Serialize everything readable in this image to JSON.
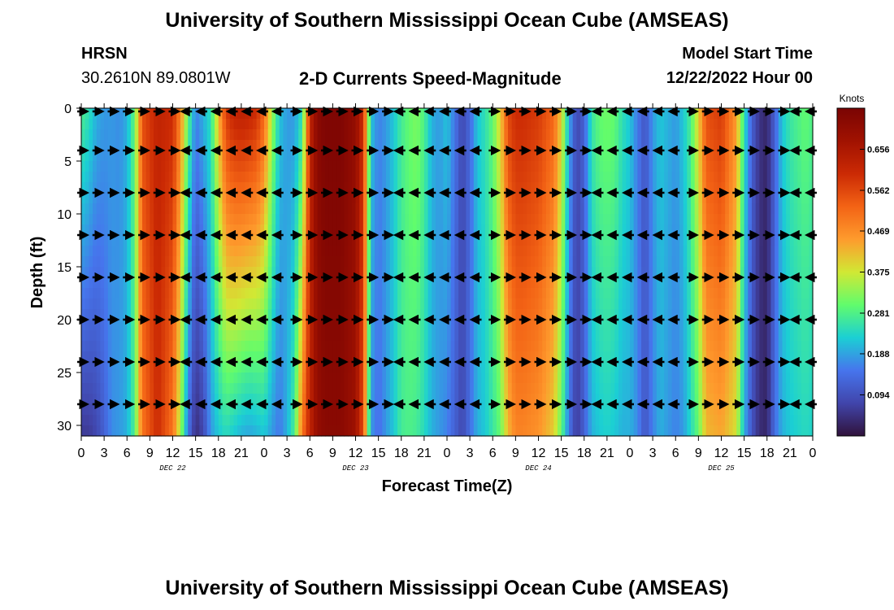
{
  "header": {
    "title": "University of Southern Mississippi Ocean Cube (AMSEAS)",
    "station": "HRSN",
    "coordinates": "30.2610N  89.0801W",
    "subtitle": "2-D Currents Speed-Magnitude",
    "model_start_label": "Model Start Time",
    "model_start_value": "12/22/2022 Hour 00"
  },
  "footer": {
    "title": "University of Southern Mississippi Ocean Cube (AMSEAS)"
  },
  "chart_data": {
    "type": "heatmap",
    "title": "2-D Currents Speed-Magnitude",
    "xlabel": "Forecast Time(Z)",
    "ylabel": "Depth (ft)",
    "xlim": [
      0,
      96
    ],
    "ylim": [
      0,
      31
    ],
    "x_tick_labels": [
      "0",
      "3",
      "6",
      "9",
      "12",
      "15",
      "18",
      "21",
      "0",
      "3",
      "6",
      "9",
      "12",
      "15",
      "18",
      "21",
      "0",
      "3",
      "6",
      "9",
      "12",
      "15",
      "18",
      "21",
      "0",
      "3",
      "6",
      "9",
      "12",
      "15",
      "18",
      "21",
      "0"
    ],
    "day_labels": [
      {
        "hour": 12,
        "label": "DEC 22"
      },
      {
        "hour": 36,
        "label": "DEC 23"
      },
      {
        "hour": 60,
        "label": "DEC 24"
      },
      {
        "hour": 84,
        "label": "DEC 25"
      }
    ],
    "y_ticks": [
      0,
      5,
      10,
      15,
      20,
      25,
      30
    ],
    "colorbar": {
      "label": "Knots",
      "min": 0.0,
      "max": 0.75,
      "tick_values": [
        0.094,
        0.188,
        0.281,
        0.375,
        0.469,
        0.562,
        0.656
      ],
      "tick_labels": [
        "0.094",
        "0.188",
        "0.281",
        "0.375",
        "0.469",
        "0.562",
        "0.656"
      ]
    },
    "speed_profile": {
      "hours": [
        0,
        1,
        2,
        3,
        4,
        5,
        6,
        7,
        8,
        10,
        12,
        13,
        14,
        15,
        16,
        17,
        18,
        19,
        20,
        21,
        22,
        23,
        24,
        25,
        26,
        27,
        28,
        29,
        30,
        31,
        32,
        34,
        36,
        37,
        38,
        39,
        40,
        41,
        42,
        43,
        44,
        45,
        46,
        47,
        48,
        49,
        50,
        51,
        52,
        53,
        54,
        55,
        56,
        57,
        58,
        60,
        62,
        63,
        64,
        65,
        66,
        67,
        68,
        69,
        70,
        71,
        72,
        73,
        74,
        75,
        76,
        77,
        78,
        79,
        80,
        81,
        82,
        84,
        86,
        87,
        88,
        89,
        90,
        91,
        92,
        93,
        94,
        95,
        96
      ],
      "surface_knots": [
        0.28,
        0.25,
        0.2,
        0.18,
        0.18,
        0.17,
        0.2,
        0.3,
        0.55,
        0.62,
        0.6,
        0.48,
        0.3,
        0.16,
        0.2,
        0.25,
        0.42,
        0.58,
        0.62,
        0.63,
        0.62,
        0.6,
        0.52,
        0.35,
        0.22,
        0.18,
        0.18,
        0.25,
        0.62,
        0.72,
        0.74,
        0.74,
        0.7,
        0.6,
        0.22,
        0.16,
        0.18,
        0.22,
        0.27,
        0.3,
        0.32,
        0.28,
        0.2,
        0.18,
        0.22,
        0.15,
        0.08,
        0.13,
        0.22,
        0.25,
        0.3,
        0.4,
        0.56,
        0.6,
        0.6,
        0.58,
        0.52,
        0.4,
        0.2,
        0.08,
        0.12,
        0.26,
        0.3,
        0.31,
        0.3,
        0.25,
        0.22,
        0.15,
        0.1,
        0.18,
        0.22,
        0.2,
        0.18,
        0.22,
        0.28,
        0.4,
        0.55,
        0.58,
        0.45,
        0.25,
        0.12,
        0.05,
        0.03,
        0.12,
        0.22,
        0.26,
        0.28,
        0.3,
        0.28
      ],
      "bottom_knots": [
        0.06,
        0.06,
        0.08,
        0.12,
        0.17,
        0.18,
        0.2,
        0.28,
        0.5,
        0.6,
        0.5,
        0.35,
        0.15,
        0.04,
        0.08,
        0.18,
        0.22,
        0.24,
        0.22,
        0.2,
        0.19,
        0.2,
        0.22,
        0.18,
        0.15,
        0.2,
        0.28,
        0.5,
        0.62,
        0.7,
        0.72,
        0.72,
        0.68,
        0.55,
        0.18,
        0.14,
        0.18,
        0.22,
        0.27,
        0.28,
        0.27,
        0.24,
        0.2,
        0.18,
        0.16,
        0.12,
        0.08,
        0.14,
        0.2,
        0.22,
        0.26,
        0.3,
        0.42,
        0.48,
        0.48,
        0.46,
        0.4,
        0.3,
        0.15,
        0.06,
        0.12,
        0.2,
        0.22,
        0.23,
        0.22,
        0.2,
        0.2,
        0.17,
        0.1,
        0.16,
        0.2,
        0.18,
        0.16,
        0.18,
        0.24,
        0.3,
        0.42,
        0.44,
        0.38,
        0.2,
        0.1,
        0.04,
        0.03,
        0.14,
        0.2,
        0.22,
        0.23,
        0.24,
        0.23
      ]
    },
    "arrow_depths_ft": [
      0,
      4,
      8,
      12,
      16,
      20,
      24,
      28
    ],
    "arrow_times_hours": [
      0,
      2,
      4,
      6,
      8,
      10,
      12,
      14,
      16,
      18,
      20,
      22,
      24,
      26,
      28,
      30,
      32,
      34,
      36,
      38,
      40,
      42,
      44,
      46,
      48,
      50,
      52,
      54,
      56,
      58,
      60,
      62,
      64,
      66,
      68,
      70,
      72,
      74,
      76,
      78,
      80,
      82,
      84,
      86,
      88,
      90,
      92,
      94,
      96
    ],
    "arrow_direction_by_time": [
      "right",
      "right",
      "right",
      "right",
      "right",
      "right",
      "right",
      "left",
      "left",
      "left",
      "left",
      "left",
      "left",
      "left",
      "right",
      "right",
      "right",
      "right",
      "right",
      "right",
      "right",
      "left",
      "left",
      "left",
      "left",
      "left",
      "left",
      "right",
      "right",
      "right",
      "right",
      "right",
      "right",
      "right",
      "left",
      "left",
      "left",
      "left",
      "left",
      "left",
      "right",
      "right",
      "right",
      "right",
      "right",
      "right",
      "right",
      "left",
      "left"
    ]
  }
}
